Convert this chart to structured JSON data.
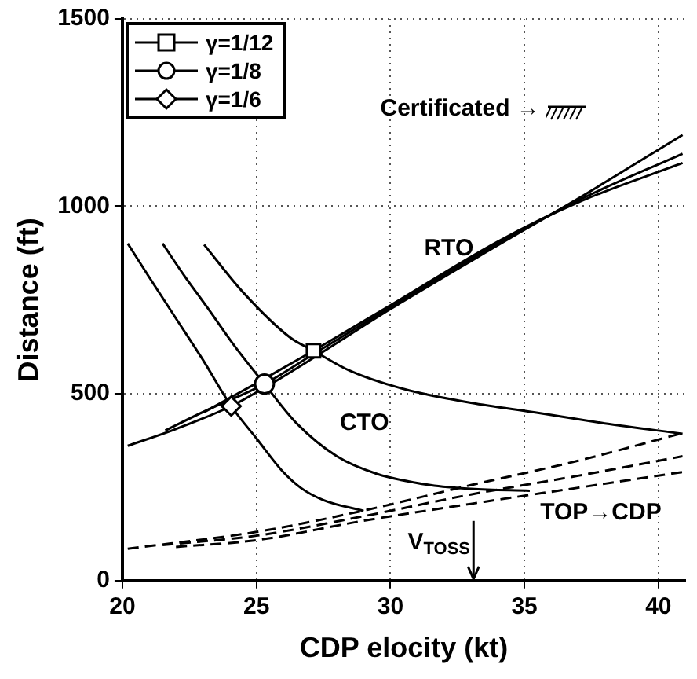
{
  "chart_data": {
    "type": "line",
    "xlabel": "CDP elocity (kt)",
    "ylabel": "Distance (ft)",
    "xlim": [
      20,
      41
    ],
    "ylim": [
      0,
      1500
    ],
    "xticks": [
      20,
      25,
      30,
      35,
      40
    ],
    "yticks": [
      0,
      500,
      1000,
      1500
    ],
    "grid": true,
    "legend": "top left",
    "annotations": [
      "RTO",
      "CTO",
      "TOP→CDP",
      "Certificated →"
    ],
    "ref_lines": [
      {
        "axis": "x",
        "value": 33.1,
        "label": "V$_{TOSS}$"
      }
    ],
    "series": [
      {
        "name": "γ=1/12",
        "type": "scatter",
        "marker": "square",
        "color": "#000000",
        "x": [
          27.13
        ],
        "values": [
          614
        ]
      },
      {
        "name": "γ=1/8",
        "type": "scatter",
        "marker": "circle",
        "color": "#000000",
        "x": [
          25.3
        ],
        "values": [
          525
        ]
      },
      {
        "name": "γ=1/6",
        "type": "scatter",
        "marker": "diamond",
        "color": "#000000",
        "x": [
          24.06
        ],
        "values": [
          466
        ]
      },
      {
        "color": "#000000",
        "line_style": "solid",
        "x": [
          20.2,
          21,
          22,
          23,
          24.06,
          25,
          26,
          26.65,
          27.5,
          29
        ],
        "values": [
          900,
          810,
          700,
          590,
          466,
          380,
          290,
          248,
          215,
          186
        ]
      },
      {
        "color": "#000000",
        "line_style": "solid",
        "x": [
          21.5,
          22.3,
          23.15,
          24.2,
          25.3,
          26.5,
          28,
          29.5,
          31.5,
          33,
          35.2
        ],
        "values": [
          900,
          815,
          731,
          625,
          525,
          420,
          332,
          285,
          255,
          245,
          240
        ]
      },
      {
        "color": "#000000",
        "line_style": "solid",
        "x": [
          23.05,
          24.5,
          26.26,
          27.13,
          28.5,
          30.53,
          33,
          35.4,
          38,
          40.9
        ],
        "values": [
          897,
          770,
          649,
          614,
          560,
          511,
          475,
          449,
          420,
          392
        ]
      },
      {
        "color": "#000000",
        "line_style": "solid",
        "x": [
          20.2,
          22,
          24.06,
          25.3,
          27.13,
          30,
          34,
          37,
          40.9
        ],
        "values": [
          360,
          405,
          466,
          515,
          595,
          725,
          895,
          1020,
          1190
        ]
      },
      {
        "color": "#000000",
        "line_style": "solid",
        "x": [
          21.6,
          23,
          25.3,
          27.13,
          30,
          34,
          37,
          40.9
        ],
        "values": [
          401,
          450,
          525,
          605,
          730,
          900,
          1015,
          1140
        ]
      },
      {
        "color": "#000000",
        "line_style": "solid",
        "x": [
          23.05,
          25,
          27.13,
          30,
          34,
          37,
          40.9
        ],
        "values": [
          450,
          527,
          614,
          735,
          905,
          1010,
          1115
        ]
      },
      {
        "color": "#000000",
        "line_style": "dashed",
        "x": [
          20.2,
          25,
          29,
          33,
          37,
          40.9
        ],
        "values": [
          85,
          130,
          187,
          255,
          320,
          394
        ]
      },
      {
        "color": "#000000",
        "line_style": "dashed",
        "x": [
          21.5,
          25,
          29,
          33,
          37,
          40.9
        ],
        "values": [
          95,
          120,
          172,
          230,
          280,
          332
        ]
      },
      {
        "color": "#000000",
        "line_style": "dashed",
        "x": [
          22,
          25,
          29,
          33,
          37,
          40.9
        ],
        "values": [
          90,
          108,
          160,
          205,
          248,
          290
        ]
      }
    ]
  }
}
